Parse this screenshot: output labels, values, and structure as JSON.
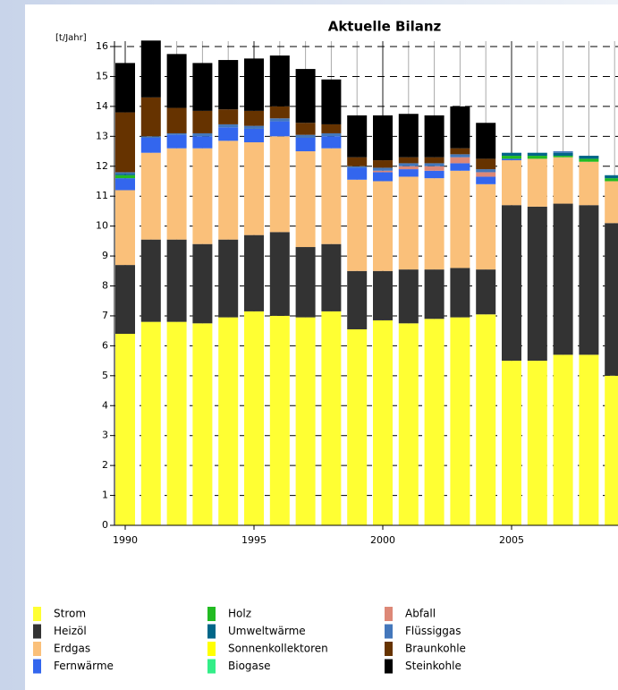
{
  "chart_data": {
    "type": "stacked-bar",
    "title": "Aktuelle Bilanz",
    "y_label": "[t/Jahr]",
    "categories": [
      "1990",
      null,
      null,
      null,
      null,
      "1995",
      null,
      null,
      null,
      null,
      "2000",
      null,
      null,
      null,
      null,
      "2005",
      null,
      null,
      null,
      null
    ],
    "ylim": [
      0,
      16
    ],
    "yticks": [
      0,
      1,
      2,
      3,
      4,
      5,
      6,
      7,
      8,
      9,
      10,
      11,
      12,
      13,
      14,
      15,
      16
    ],
    "grid": true,
    "series": [
      {
        "name": "Strom",
        "color": "#ffff33",
        "values": [
          6.4,
          6.8,
          6.8,
          6.75,
          6.95,
          7.15,
          7.0,
          6.95,
          7.15,
          6.55,
          6.85,
          6.75,
          6.9,
          6.95,
          7.05,
          5.5,
          5.5,
          5.7,
          5.7,
          5.0
        ]
      },
      {
        "name": "Heizöl",
        "color": "#333333",
        "values": [
          2.3,
          2.75,
          2.75,
          2.65,
          2.6,
          2.55,
          2.8,
          2.35,
          2.25,
          1.95,
          1.65,
          1.8,
          1.65,
          1.65,
          1.5,
          5.2,
          5.15,
          5.05,
          5.0,
          5.1
        ]
      },
      {
        "name": "Erdgas",
        "color": "#fac07a",
        "values": [
          2.5,
          2.9,
          3.05,
          3.2,
          3.3,
          3.1,
          3.2,
          3.2,
          3.2,
          3.05,
          3.0,
          3.1,
          3.05,
          3.25,
          2.85,
          1.5,
          1.6,
          1.55,
          1.45,
          1.4
        ]
      },
      {
        "name": "Fernwärme",
        "color": "#3366ee",
        "values": [
          0.4,
          0.5,
          0.45,
          0.4,
          0.45,
          0.45,
          0.5,
          0.45,
          0.4,
          0.4,
          0.3,
          0.25,
          0.25,
          0.25,
          0.25,
          0.05,
          0,
          0,
          0,
          0
        ]
      },
      {
        "name": "Holz",
        "color": "#22bb22",
        "values": [
          0.1,
          0,
          0,
          0,
          0,
          0,
          0,
          0,
          0,
          0,
          0,
          0,
          0,
          0,
          0,
          0.1,
          0.1,
          0.05,
          0.1,
          0.1
        ]
      },
      {
        "name": "Umweltwärme",
        "color": "#006688",
        "values": [
          0.05,
          0,
          0,
          0,
          0,
          0,
          0,
          0,
          0,
          0,
          0,
          0,
          0,
          0,
          0,
          0.1,
          0.1,
          0.1,
          0.1,
          0.1
        ]
      },
      {
        "name": "Sonnenkollektoren",
        "color": "#ffff00",
        "values": [
          0,
          0,
          0,
          0,
          0,
          0,
          0,
          0,
          0,
          0,
          0,
          0,
          0,
          0,
          0,
          0,
          0,
          0,
          0,
          0
        ]
      },
      {
        "name": "Biogase",
        "color": "#33ee88",
        "values": [
          0,
          0,
          0,
          0,
          0,
          0,
          0,
          0,
          0,
          0,
          0,
          0,
          0,
          0,
          0,
          0,
          0,
          0,
          0,
          0
        ]
      },
      {
        "name": "Abfall",
        "color": "#dd8877",
        "values": [
          0,
          0,
          0,
          0,
          0,
          0,
          0,
          0,
          0,
          0,
          0.05,
          0.1,
          0.15,
          0.2,
          0.15,
          0,
          0,
          0,
          0,
          0
        ]
      },
      {
        "name": "Flüssiggas",
        "color": "#4477bb",
        "values": [
          0.05,
          0.05,
          0.05,
          0.1,
          0.1,
          0.1,
          0.1,
          0.1,
          0.1,
          0.05,
          0.1,
          0.1,
          0.1,
          0.1,
          0.1,
          0,
          0,
          0.05,
          0,
          0
        ]
      },
      {
        "name": "Braunkohle",
        "color": "#663300",
        "values": [
          2.0,
          1.3,
          0.85,
          0.75,
          0.5,
          0.5,
          0.4,
          0.4,
          0.3,
          0.3,
          0.25,
          0.2,
          0.2,
          0.2,
          0.35,
          0,
          0,
          0,
          0,
          0
        ]
      },
      {
        "name": "Steinkohle",
        "color": "#000000",
        "values": [
          1.65,
          1.9,
          1.8,
          1.6,
          1.65,
          1.75,
          1.7,
          1.8,
          1.5,
          1.4,
          1.5,
          1.45,
          1.4,
          1.4,
          1.2,
          0,
          0,
          0,
          0,
          0
        ]
      }
    ]
  }
}
